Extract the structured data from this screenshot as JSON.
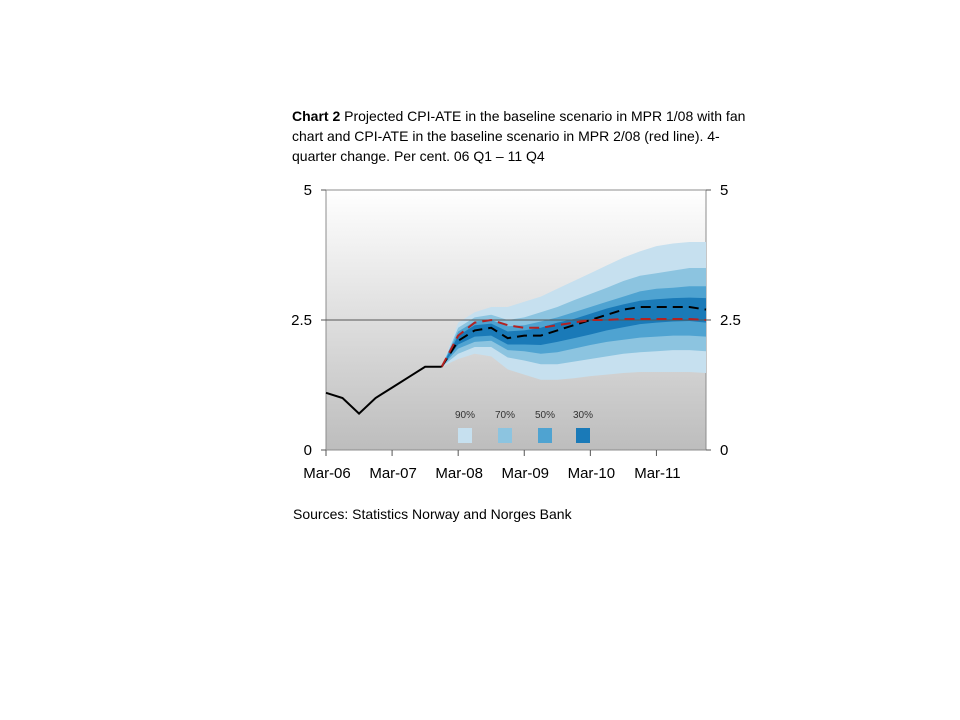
{
  "title": {
    "bold": "Chart 2",
    "rest": " Projected CPI-ATE in the baseline scenario in MPR 1/08 with fan chart and CPI-ATE in the baseline scenario in MPR 2/08 (red line). 4-quarter change. Per cent. 06 Q1 – 11 Q4"
  },
  "source": "Sources: Statistics Norway and Norges Bank",
  "chart_data": {
    "type": "area",
    "ylim": [
      0,
      5
    ],
    "yticks": [
      0,
      2.5,
      5
    ],
    "ytick_labels": [
      "0",
      "2.5",
      "5"
    ],
    "x_labels": [
      "Mar-06",
      "Mar-07",
      "Mar-08",
      "Mar-09",
      "Mar-10",
      "Mar-11"
    ],
    "x_quarters": [
      "06 Q1",
      "06 Q2",
      "06 Q3",
      "06 Q4",
      "07 Q1",
      "07 Q2",
      "07 Q3",
      "07 Q4",
      "08 Q1",
      "08 Q2",
      "08 Q3",
      "08 Q4",
      "09 Q1",
      "09 Q2",
      "09 Q3",
      "09 Q4",
      "10 Q1",
      "10 Q2",
      "10 Q3",
      "10 Q4",
      "11 Q1",
      "11 Q2",
      "11 Q3",
      "11 Q4"
    ],
    "horizontal_reference": 2.5,
    "background": "gradient white-to-grey",
    "history": {
      "style": "solid black",
      "values": [
        1.1,
        1.0,
        0.7,
        1.0,
        1.2,
        1.4,
        1.6,
        1.6
      ]
    },
    "projection_mpr_1_08": {
      "style": "dashed black",
      "start_index": 7,
      "values": [
        1.6,
        2.1,
        2.3,
        2.35,
        2.15,
        2.2,
        2.2,
        2.3,
        2.4,
        2.5,
        2.6,
        2.7,
        2.75,
        2.75,
        2.75,
        2.75,
        2.7
      ]
    },
    "projection_mpr_2_08": {
      "style": "dashed red",
      "color": "#b22222",
      "start_index": 7,
      "values": [
        1.6,
        2.2,
        2.45,
        2.5,
        2.4,
        2.35,
        2.35,
        2.4,
        2.45,
        2.5,
        2.5,
        2.52,
        2.52,
        2.52,
        2.52,
        2.52,
        2.5
      ]
    },
    "fan": {
      "start_index": 7,
      "legend_labels": [
        "90%",
        "70%",
        "50%",
        "30%"
      ],
      "colors": [
        "#c6e0ef",
        "#8cc4e0",
        "#4fa3d1",
        "#1a7ab8"
      ],
      "bands": {
        "p90": {
          "upper": [
            1.6,
            2.45,
            2.65,
            2.75,
            2.75,
            2.85,
            2.95,
            3.1,
            3.25,
            3.4,
            3.55,
            3.7,
            3.82,
            3.92,
            3.97,
            4.0,
            4.0
          ],
          "lower": [
            1.6,
            1.75,
            1.85,
            1.8,
            1.55,
            1.45,
            1.35,
            1.35,
            1.38,
            1.42,
            1.45,
            1.48,
            1.5,
            1.5,
            1.5,
            1.5,
            1.48
          ]
        },
        "p70": {
          "upper": [
            1.6,
            2.35,
            2.55,
            2.6,
            2.5,
            2.55,
            2.65,
            2.75,
            2.88,
            3.0,
            3.12,
            3.25,
            3.35,
            3.4,
            3.45,
            3.5,
            3.5
          ],
          "lower": [
            1.6,
            1.85,
            1.98,
            1.98,
            1.78,
            1.72,
            1.65,
            1.65,
            1.7,
            1.75,
            1.8,
            1.85,
            1.88,
            1.9,
            1.92,
            1.92,
            1.9
          ]
        },
        "p50": {
          "upper": [
            1.6,
            2.28,
            2.47,
            2.5,
            2.38,
            2.4,
            2.47,
            2.55,
            2.65,
            2.75,
            2.85,
            2.95,
            3.05,
            3.1,
            3.12,
            3.15,
            3.15
          ],
          "lower": [
            1.6,
            1.95,
            2.08,
            2.1,
            1.92,
            1.9,
            1.85,
            1.88,
            1.95,
            2.02,
            2.08,
            2.12,
            2.16,
            2.18,
            2.2,
            2.2,
            2.18
          ]
        },
        "p30": {
          "upper": [
            1.6,
            2.2,
            2.4,
            2.43,
            2.28,
            2.3,
            2.35,
            2.45,
            2.52,
            2.62,
            2.72,
            2.8,
            2.87,
            2.9,
            2.92,
            2.93,
            2.92
          ],
          "lower": [
            1.6,
            2.03,
            2.18,
            2.2,
            2.03,
            2.03,
            2.02,
            2.08,
            2.15,
            2.22,
            2.3,
            2.36,
            2.42,
            2.45,
            2.47,
            2.48,
            2.45
          ]
        }
      }
    }
  }
}
